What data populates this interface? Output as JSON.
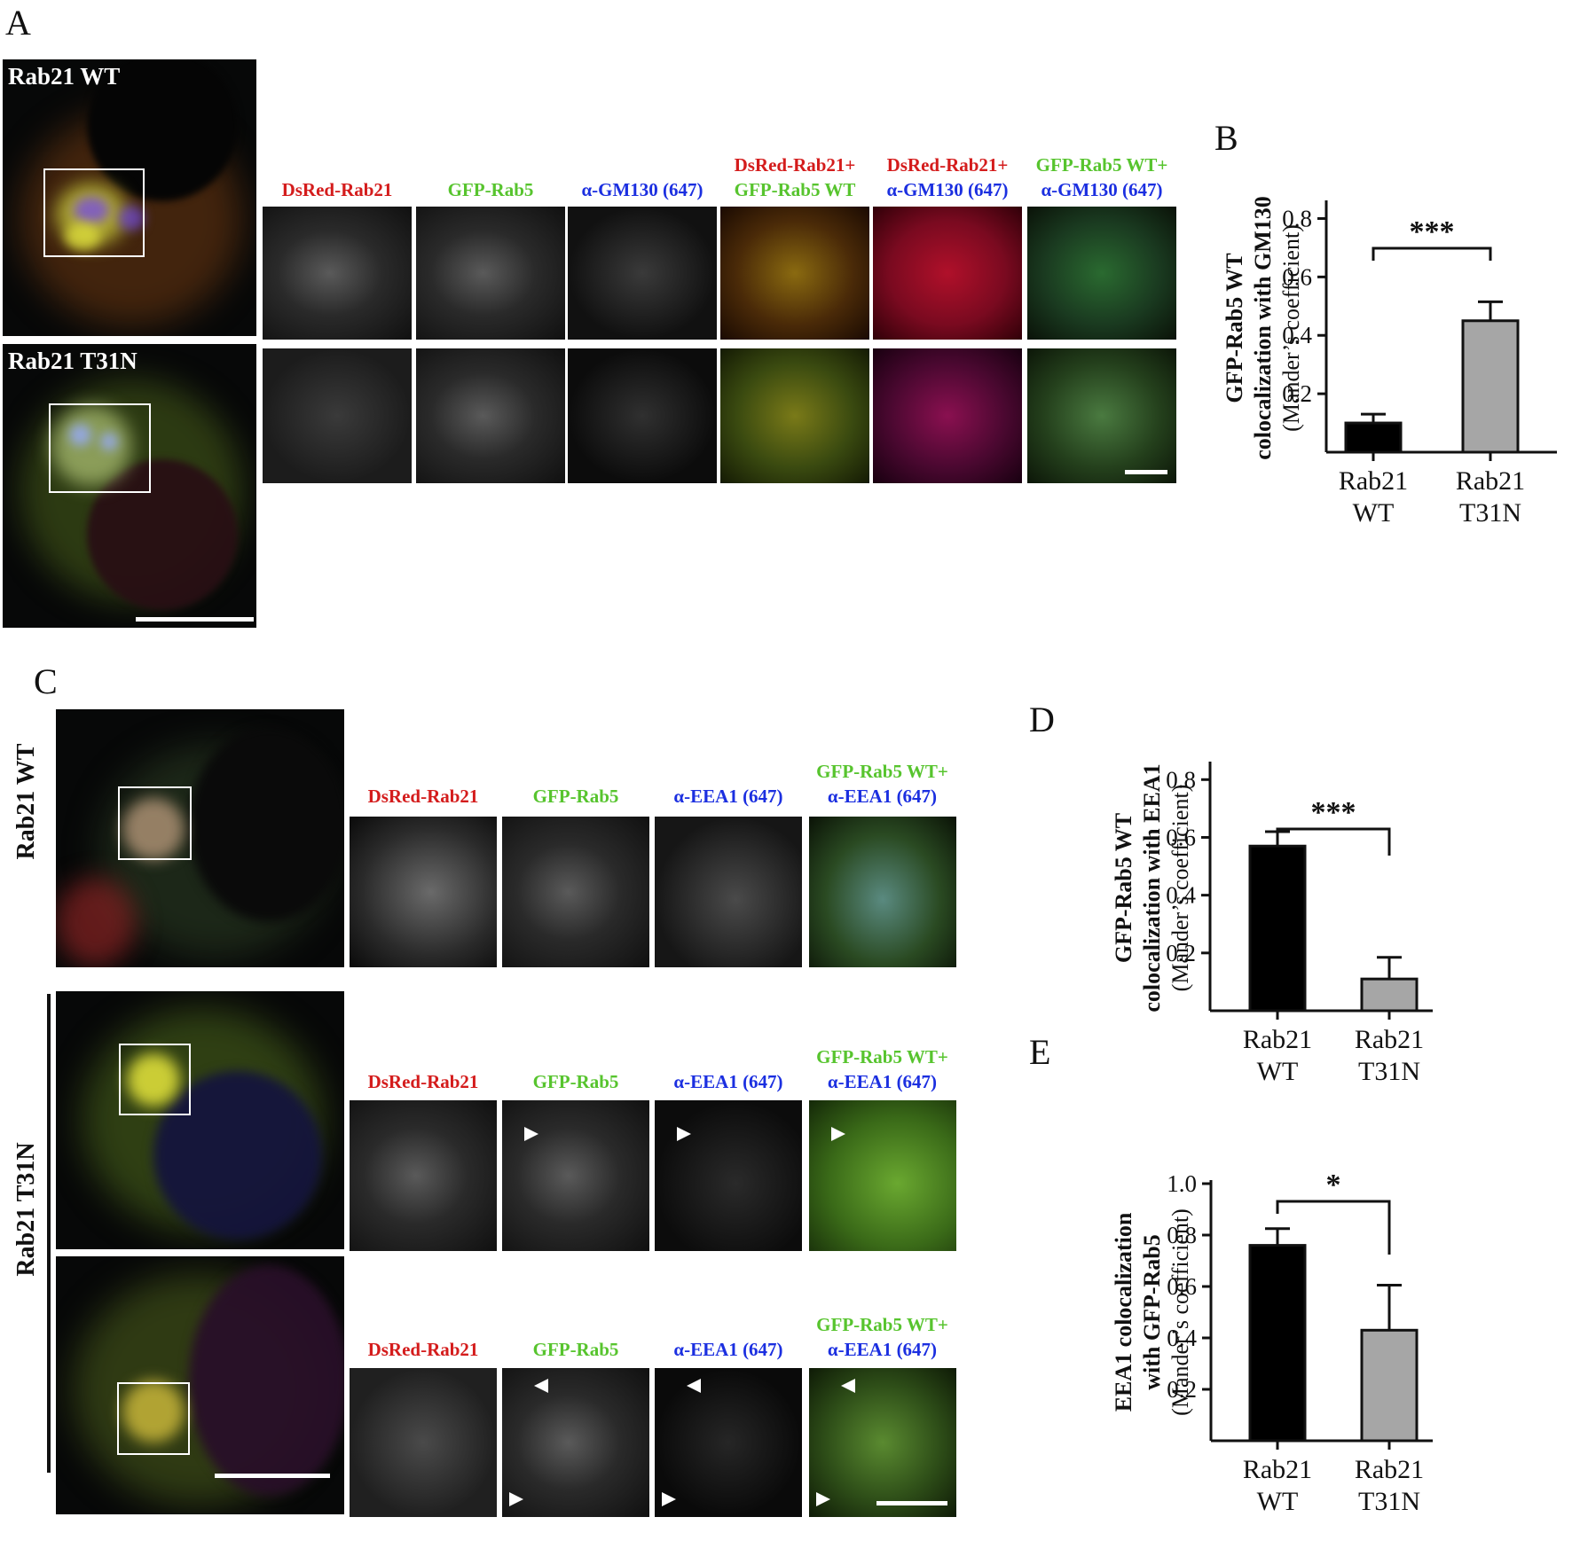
{
  "panels": {
    "A": "A",
    "B": "B",
    "C": "C",
    "D": "D",
    "E": "E"
  },
  "panel_a": {
    "cell_labels": [
      "Rab21 WT",
      "Rab21 T31N"
    ],
    "channels": [
      {
        "line1": "DsRed-Rab21",
        "line1_color": "red",
        "line2": "",
        "line2_color": "red"
      },
      {
        "line1": "GFP-Rab5",
        "line1_color": "green",
        "line2": "",
        "line2_color": "green"
      },
      {
        "line1": "α-GM130 (647)",
        "line1_color": "blue",
        "line2": "",
        "line2_color": "blue"
      },
      {
        "line1": "DsRed-Rab21+",
        "line1_color": "red",
        "line2": "GFP-Rab5 WT",
        "line2_color": "green"
      },
      {
        "line1": "DsRed-Rab21+",
        "line1_color": "red",
        "line2": "α-GM130 (647)",
        "line2_color": "blue"
      },
      {
        "line1": "GFP-Rab5 WT+",
        "line1_color": "green",
        "line2": "α-GM130 (647)",
        "line2_color": "blue"
      }
    ]
  },
  "panel_c": {
    "row_labels": [
      "Rab21 WT",
      "Rab21 T31N"
    ],
    "channels": [
      {
        "line1": "",
        "line2": "DsRed-Rab21",
        "line2_color": "red"
      },
      {
        "line1": "",
        "line2": "GFP-Rab5",
        "line2_color": "green"
      },
      {
        "line1": "",
        "line2": "α-EEA1 (647)",
        "line2_color": "blue"
      },
      {
        "line1": "GFP-Rab5 WT+",
        "line1_color": "green",
        "line2": "α-EEA1 (647)",
        "line2_color": "blue"
      }
    ]
  },
  "chart_data": [
    {
      "id": "B",
      "type": "bar",
      "ylabel_lines": [
        "GFP-Rab5 WT",
        "colocalization with GM130",
        "(Mander’s coefficient)"
      ],
      "categories": [
        [
          "Rab21",
          "WT"
        ],
        [
          "Rab21",
          "T31N"
        ]
      ],
      "values": [
        0.1,
        0.45
      ],
      "errors": [
        0.03,
        0.065
      ],
      "bar_colors": [
        "#000000",
        "#a6a6a6"
      ],
      "yticks": [
        "0.2",
        "0.4",
        "0.6",
        "0.8"
      ],
      "ytick_values": [
        0.2,
        0.4,
        0.6,
        0.8
      ],
      "ylim": [
        0,
        0.85
      ],
      "significance": "***"
    },
    {
      "id": "D",
      "type": "bar",
      "ylabel_lines": [
        "GFP-Rab5 WT",
        "colocalization with EEA1",
        "(Mander’s coefficient)"
      ],
      "categories": [
        [
          "Rab21",
          "WT"
        ],
        [
          "Rab21",
          "T31N"
        ]
      ],
      "values": [
        0.57,
        0.11
      ],
      "errors": [
        0.05,
        0.075
      ],
      "bar_colors": [
        "#000000",
        "#a6a6a6"
      ],
      "yticks": [
        "0.2",
        "0.4",
        "0.6",
        "0.8"
      ],
      "ytick_values": [
        0.2,
        0.4,
        0.6,
        0.8
      ],
      "ylim": [
        0,
        0.85
      ],
      "significance": "***"
    },
    {
      "id": "E",
      "type": "bar",
      "ylabel_lines": [
        "EEA1 colocalization",
        "with GFP-Rab5",
        "(Mander’s coefficient)"
      ],
      "categories": [
        [
          "Rab21",
          "WT"
        ],
        [
          "Rab21",
          "T31N"
        ]
      ],
      "values": [
        0.76,
        0.43
      ],
      "errors": [
        0.065,
        0.175
      ],
      "bar_colors": [
        "#000000",
        "#a6a6a6"
      ],
      "yticks": [
        "0.2",
        "0.4",
        "0.6",
        "0.8",
        "1.0"
      ],
      "ytick_values": [
        0.2,
        0.4,
        0.6,
        0.8,
        1.0
      ],
      "ylim": [
        0,
        1.0
      ],
      "significance": "*"
    }
  ]
}
